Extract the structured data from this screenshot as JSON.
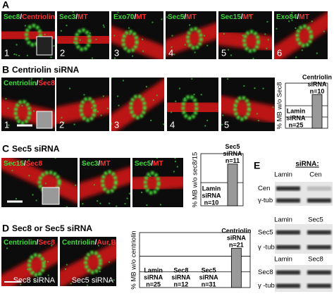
{
  "A": {
    "letter": "A",
    "images": [
      {
        "label": [
          "Sec8",
          "/",
          "Centriolin"
        ],
        "number": "1"
      },
      {
        "label": [
          "Sec3",
          "/",
          "MT"
        ],
        "number": "2"
      },
      {
        "label": [
          "Exo70",
          "/",
          "MT"
        ],
        "number": "3"
      },
      {
        "label": [
          "Sec5",
          "/",
          "MT"
        ],
        "number": "4"
      },
      {
        "label": [
          "Sec15",
          "/",
          "MT"
        ],
        "number": "5"
      },
      {
        "label": [
          "Exo84",
          "/",
          "MT"
        ],
        "number": "6"
      }
    ]
  },
  "B": {
    "letter": "B",
    "title": "Centriolin siRNA",
    "images": [
      {
        "label": [
          "Centriolin",
          "/",
          "Sec8"
        ],
        "number": "1"
      },
      {
        "number": "2"
      },
      {
        "number": "3"
      },
      {
        "number": "4"
      },
      {
        "number": "5"
      }
    ],
    "chart": {
      "type": "bar",
      "ylabel": "% MB w/o Sec8",
      "categories": [
        [
          "Lamin",
          "siRNA",
          "n=25"
        ],
        [
          "Centriolin",
          "siRNA",
          "n=10"
        ]
      ],
      "values": [
        0,
        30
      ],
      "ylim": [
        0,
        40
      ],
      "gridlines": [
        10,
        20
      ],
      "color": "#999999"
    }
  },
  "C": {
    "letter": "C",
    "title": "Sec5 siRNA",
    "images": [
      {
        "label": [
          "Sec15",
          "/",
          "Sec8"
        ]
      },
      {
        "label": [
          "Sec3",
          "/",
          "MT"
        ]
      },
      {
        "label": [
          "Sec5",
          "/",
          "MT"
        ]
      }
    ],
    "chart": {
      "type": "bar",
      "ylabel": "% MB w/o sec8/15",
      "categories": [
        [
          "Lamin",
          "siRNA",
          "n=10"
        ],
        [
          "Sec5",
          "siRNA",
          "n=11"
        ]
      ],
      "values": [
        0,
        36
      ],
      "ylim": [
        0,
        45
      ],
      "gridlines": [
        20
      ],
      "color": "#999999"
    }
  },
  "D": {
    "letter": "D",
    "title": "Sec8 or Sec5 siRNA",
    "images": [
      {
        "label": [
          "Centriolin",
          "/",
          "Sec8"
        ],
        "caption": "Sec8 siRNA"
      },
      {
        "label": [
          "Centriolin",
          "/",
          "Aur B"
        ],
        "caption": "Sec5 siRNA"
      }
    ],
    "chart": {
      "type": "bar",
      "ylabel": "% MB w/o centriolin",
      "categories": [
        [
          "Lamin",
          "siRNA",
          "n=25"
        ],
        [
          "Sec8",
          "siRNA",
          "n=12"
        ],
        [
          "Sec5",
          "siRNA",
          "n=31"
        ],
        [
          "Centriolin",
          "siRNA",
          "n=21"
        ]
      ],
      "values": [
        0,
        0,
        0,
        25
      ],
      "ylim": [
        0,
        35
      ],
      "gridlines": [
        10,
        20
      ],
      "color": "#999999"
    }
  },
  "E": {
    "letter": "E",
    "header": "siRNA:",
    "blots": [
      {
        "columns": [
          "Lamin",
          "Cen"
        ],
        "rows": [
          "Cen",
          "γ-tub"
        ]
      },
      {
        "columns": [
          "Lamin",
          "Sec5"
        ],
        "rows": [
          "Sec5",
          "γ -tub"
        ]
      },
      {
        "columns": [
          "Lamin",
          "Sec8"
        ],
        "rows": [
          "Sec8",
          "γ -tub"
        ]
      }
    ]
  }
}
